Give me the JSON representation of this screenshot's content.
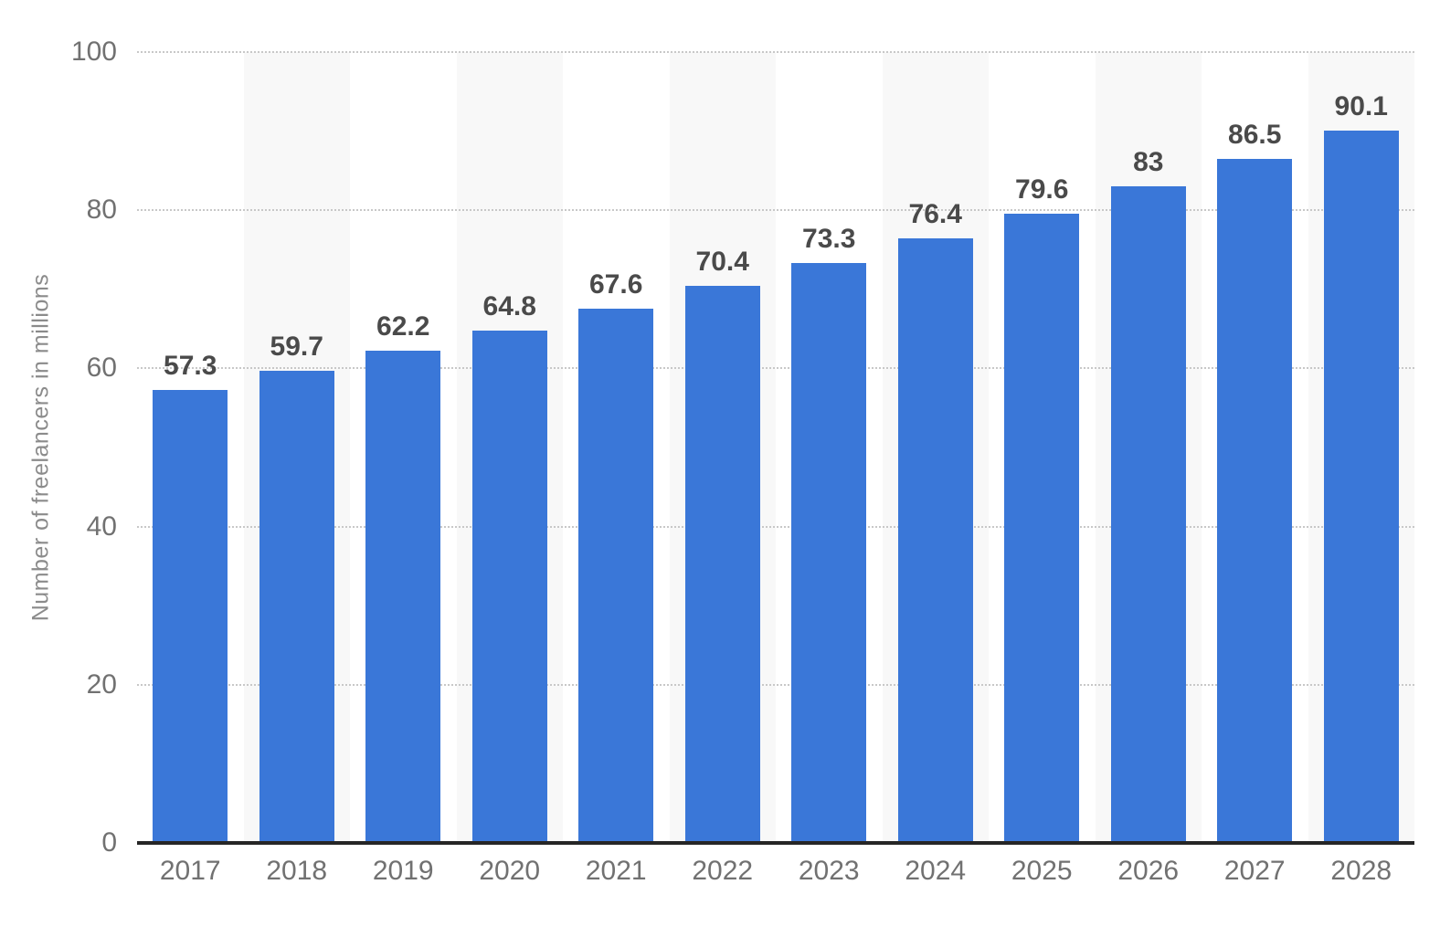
{
  "chart_data": {
    "type": "bar",
    "categories": [
      "2017",
      "2018",
      "2019",
      "2020",
      "2021",
      "2022",
      "2023",
      "2024",
      "2025",
      "2026",
      "2027",
      "2028"
    ],
    "values": [
      57.3,
      59.7,
      62.2,
      64.8,
      67.6,
      70.4,
      73.3,
      76.4,
      79.6,
      83,
      86.5,
      90.1
    ],
    "value_labels": [
      "57.3",
      "59.7",
      "62.2",
      "64.8",
      "67.6",
      "70.4",
      "73.3",
      "76.4",
      "79.6",
      "83",
      "86.5",
      "90.1"
    ],
    "title": "",
    "xlabel": "",
    "ylabel": "Number of freelancers in millions",
    "ylim": [
      0,
      100
    ],
    "yticks": [
      0,
      20,
      40,
      60,
      80,
      100
    ],
    "grid": "horizontal-dotted",
    "legend": "none",
    "colors": {
      "bar": "#3a77d8",
      "column_stripe": "#f8f8f8",
      "gridline": "#c8c8c8",
      "axis_line": "#262626",
      "value_label": "#4a4a4a",
      "tick_label": "#717171",
      "axis_title": "#8b8b8b",
      "background": "#ffffff"
    }
  }
}
